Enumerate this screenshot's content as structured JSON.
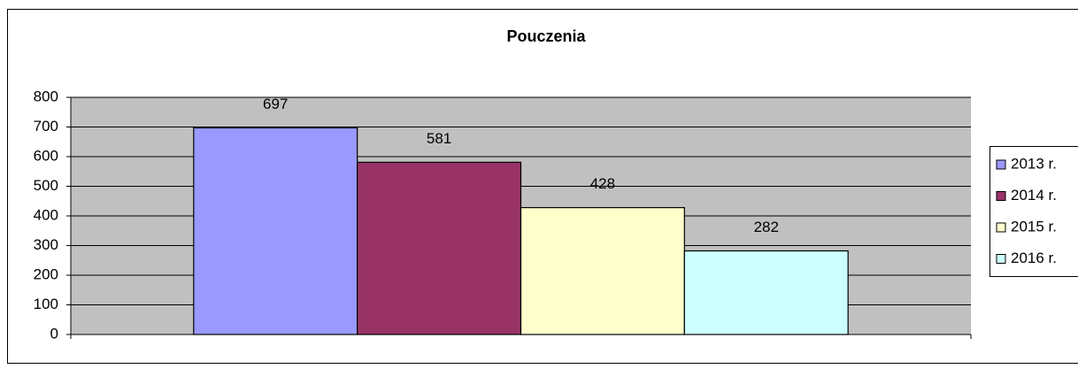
{
  "chart_data": {
    "type": "bar",
    "title": "Pouczenia",
    "categories": [
      null
    ],
    "series": [
      {
        "name": "2013 r.",
        "color": "#9999ff",
        "values": [
          697
        ]
      },
      {
        "name": "2014 r.",
        "color": "#993366",
        "values": [
          581
        ]
      },
      {
        "name": "2015 r.",
        "color": "#ffffcc",
        "values": [
          428
        ]
      },
      {
        "name": "2016 r.",
        "color": "#ccffff",
        "values": [
          282
        ]
      }
    ],
    "ylim": [
      0,
      800
    ],
    "yticks": [
      0,
      100,
      200,
      300,
      400,
      500,
      600,
      700,
      800
    ],
    "grid": true,
    "legend": "right",
    "data_labels": true
  }
}
